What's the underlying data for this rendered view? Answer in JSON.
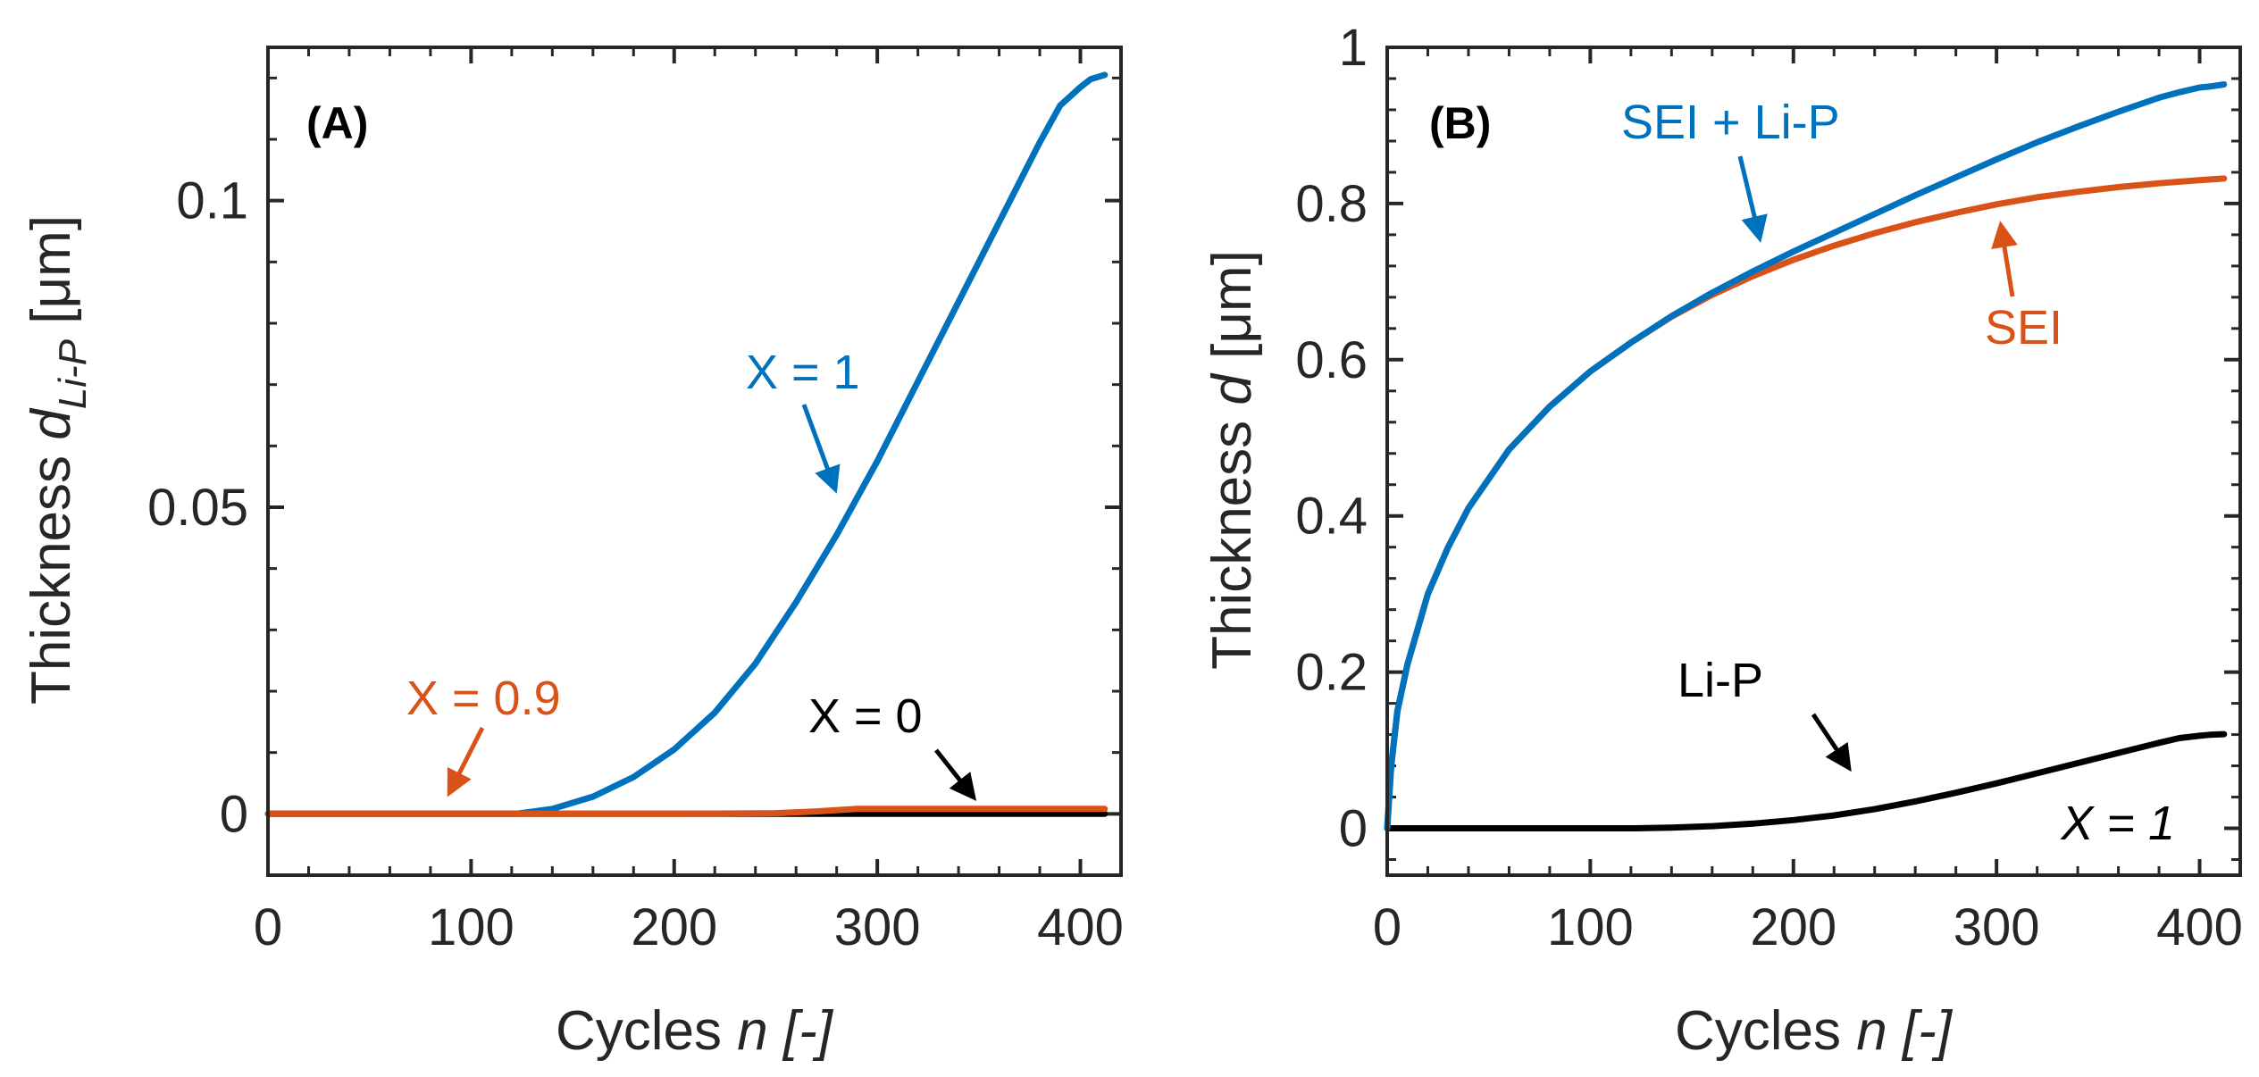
{
  "colors": {
    "blue": "#0072BD",
    "orange": "#D95319",
    "black": "#000000",
    "axis": "#262626"
  },
  "chart_data": [
    {
      "type": "line",
      "panel": "(A)",
      "xlabel_main": "Cycles ",
      "xlabel_italic": "n [-]",
      "ylabel_main": "Thickness ",
      "ylabel_var": "d",
      "ylabel_sub": "Li-P",
      "ylabel_unit": " [μm]",
      "xlim": [
        0,
        420
      ],
      "ylim": [
        -0.01,
        0.125
      ],
      "xticks": [
        0,
        100,
        200,
        300,
        400
      ],
      "xtick_labels": [
        "0",
        "100",
        "200",
        "300",
        "400"
      ],
      "yticks": [
        0,
        0.05,
        0.1
      ],
      "ytick_labels": [
        "0",
        "0.05",
        "0.1"
      ],
      "series": [
        {
          "name": "X = 0",
          "color": "#000000",
          "x": [
            0,
            100,
            200,
            300,
            400,
            412
          ],
          "y": [
            0,
            0,
            0,
            0,
            0,
            0
          ]
        },
        {
          "name": "X = 1",
          "color": "#0072BD",
          "x": [
            0,
            100,
            122,
            140,
            160,
            180,
            200,
            220,
            240,
            260,
            280,
            300,
            320,
            340,
            360,
            380,
            390,
            400,
            405,
            412
          ],
          "y": [
            0,
            0,
            0,
            0.0008,
            0.0028,
            0.006,
            0.0105,
            0.0165,
            0.0245,
            0.0345,
            0.0455,
            0.0575,
            0.0705,
            0.0835,
            0.0965,
            0.1095,
            0.1155,
            0.1185,
            0.1198,
            0.1205
          ]
        },
        {
          "name": "X = 0.9",
          "color": "#D95319",
          "x": [
            0,
            100,
            200,
            250,
            270,
            290,
            350,
            412
          ],
          "y": [
            0,
            0,
            0,
            0.0001,
            0.0004,
            0.0008,
            0.0008,
            0.0008
          ]
        }
      ],
      "annotations": [
        {
          "text": "X = 1",
          "color": "#0072BD"
        },
        {
          "text": "X = 0.9",
          "color": "#D95319"
        },
        {
          "text": "X = 0",
          "color": "#000000"
        }
      ]
    },
    {
      "type": "line",
      "panel": "(B)",
      "xlabel_main": "Cycles ",
      "xlabel_italic": "n [-]",
      "ylabel_main": "Thickness ",
      "ylabel_var": "d",
      "ylabel_unit": " [μm]",
      "xlim": [
        0,
        420
      ],
      "ylim": [
        -0.06,
        1.0
      ],
      "xticks": [
        0,
        100,
        200,
        300,
        400
      ],
      "xtick_labels": [
        "0",
        "100",
        "200",
        "300",
        "400"
      ],
      "yticks": [
        0,
        0.2,
        0.4,
        0.6,
        0.8,
        1
      ],
      "ytick_labels": [
        "0",
        "0.2",
        "0.4",
        "0.6",
        "0.8",
        "1"
      ],
      "series": [
        {
          "name": "Li-P",
          "color": "#000000",
          "x": [
            0,
            100,
            122,
            140,
            160,
            180,
            200,
            220,
            240,
            260,
            280,
            300,
            320,
            340,
            360,
            380,
            390,
            400,
            405,
            412
          ],
          "y": [
            0,
            0,
            0,
            0.0008,
            0.0028,
            0.006,
            0.0105,
            0.0165,
            0.0245,
            0.0345,
            0.0455,
            0.0575,
            0.0705,
            0.0835,
            0.0965,
            0.1095,
            0.1155,
            0.1185,
            0.1198,
            0.1205
          ]
        },
        {
          "name": "SEI",
          "color": "#D95319",
          "x": [
            0,
            2,
            5,
            10,
            20,
            30,
            40,
            60,
            80,
            100,
            120,
            140,
            160,
            180,
            200,
            220,
            240,
            260,
            280,
            300,
            320,
            340,
            360,
            380,
            400,
            412
          ],
          "y": [
            0,
            0.08,
            0.15,
            0.21,
            0.3,
            0.36,
            0.41,
            0.485,
            0.54,
            0.585,
            0.622,
            0.655,
            0.683,
            0.707,
            0.728,
            0.746,
            0.762,
            0.776,
            0.788,
            0.799,
            0.808,
            0.815,
            0.821,
            0.826,
            0.83,
            0.832
          ]
        },
        {
          "name": "SEI + Li-P",
          "color": "#0072BD",
          "x": [
            0,
            2,
            5,
            10,
            20,
            30,
            40,
            60,
            80,
            100,
            120,
            140,
            160,
            180,
            200,
            220,
            240,
            260,
            280,
            300,
            320,
            340,
            360,
            380,
            390,
            400,
            405,
            412
          ],
          "y": [
            0,
            0.08,
            0.15,
            0.21,
            0.3,
            0.36,
            0.41,
            0.485,
            0.54,
            0.585,
            0.622,
            0.6558,
            0.6858,
            0.713,
            0.7385,
            0.7625,
            0.7865,
            0.8105,
            0.8335,
            0.8565,
            0.8785,
            0.8985,
            0.9175,
            0.9355,
            0.9425,
            0.9485,
            0.9498,
            0.9525
          ]
        }
      ],
      "annotations": [
        {
          "text": "SEI + Li-P",
          "color": "#0072BD"
        },
        {
          "text": "SEI",
          "color": "#D95319"
        },
        {
          "text": "Li-P",
          "color": "#000000"
        },
        {
          "text": "X = 1",
          "color": "#000000"
        }
      ]
    }
  ]
}
